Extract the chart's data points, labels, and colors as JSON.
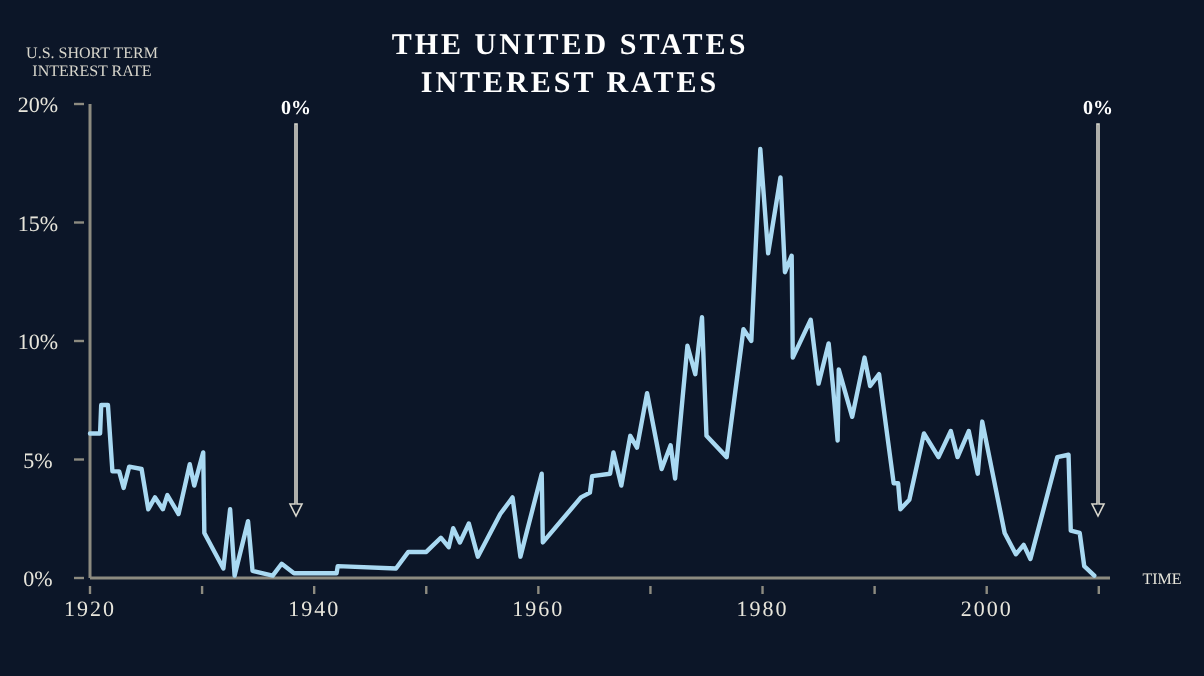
{
  "chart_data": {
    "type": "line",
    "title": "THE UNITED STATES\nINTEREST RATES",
    "ylabel": "U.S. SHORT TERM\nINTEREST RATE",
    "xlabel": "TIME",
    "x": [
      1920,
      1920.9,
      1921,
      1921.6,
      1922,
      1922.6,
      1923,
      1923.5,
      1924.6,
      1925.2,
      1925.8,
      1926.5,
      1926.9,
      1927.9,
      1928.9,
      1929.3,
      1930.1,
      1930.2,
      1931.9,
      1932.5,
      1932.9,
      1934.1,
      1934.5,
      1936.3,
      1937.1,
      1938.2,
      1942,
      1942.1,
      1947.3,
      1948.4,
      1950,
      1951.3,
      1952,
      1952.4,
      1953,
      1953.8,
      1954.6,
      1956.6,
      1957.7,
      1958.4,
      1960.3,
      1960.4,
      1963.8,
      1964.6,
      1964.8,
      1966.4,
      1966.7,
      1967.4,
      1968.2,
      1968.8,
      1969.7,
      1971,
      1971.8,
      1972.2,
      1973.3,
      1974,
      1974.6,
      1975,
      1976.8,
      1978.3,
      1979,
      1979.8,
      1980.5,
      1981.6,
      1982,
      1982.6,
      1982.7,
      1984.3,
      1985,
      1985.9,
      1986.3,
      1986.7,
      1986.8,
      1988,
      1989.1,
      1989.6,
      1990.4,
      1991.7,
      1992.1,
      1992.3,
      1993.1,
      1994.4,
      1995.7,
      1996.8,
      1997.4,
      1998.4,
      1999.2,
      1999.6,
      2001.6,
      2002.6,
      2003.3,
      2003.9,
      2006.3,
      2007.3,
      2007.5,
      2008.3,
      2008.7,
      2009.6
    ],
    "series": [
      {
        "color": "#a9d9f2",
        "values": [
          6.1,
          6.1,
          7.3,
          7.3,
          4.5,
          4.5,
          3.8,
          4.7,
          4.6,
          2.9,
          3.4,
          2.9,
          3.5,
          2.7,
          4.8,
          3.9,
          5.3,
          1.9,
          0.4,
          2.9,
          0.1,
          2.4,
          0.3,
          0.1,
          0.6,
          0.2,
          0.2,
          0.5,
          0.4,
          1.1,
          1.1,
          1.7,
          1.3,
          2.1,
          1.5,
          2.3,
          0.9,
          2.7,
          3.4,
          0.9,
          4.4,
          1.5,
          3.4,
          3.6,
          4.3,
          4.4,
          5.3,
          3.9,
          6.0,
          5.5,
          7.8,
          4.6,
          5.6,
          4.2,
          9.8,
          8.6,
          11.0,
          6.0,
          5.1,
          10.5,
          10.0,
          18.1,
          13.7,
          16.9,
          12.9,
          13.6,
          9.3,
          10.9,
          8.2,
          9.9,
          8.0,
          5.8,
          8.8,
          6.8,
          9.3,
          8.1,
          8.6,
          4.0,
          4.0,
          2.9,
          3.3,
          6.1,
          5.1,
          6.2,
          5.1,
          6.2,
          4.4,
          6.6,
          1.9,
          1.0,
          1.4,
          0.8,
          5.1,
          5.2,
          2.0,
          1.9,
          0.5,
          0.1
        ]
      }
    ],
    "xlim": [
      1920,
      2011
    ],
    "xticks": [
      1920,
      {
        "value": 1930,
        "label": null
      },
      1940,
      {
        "value": 1950,
        "label": null
      },
      1960,
      {
        "value": 1970,
        "label": null
      },
      1980,
      {
        "value": 1990,
        "label": null
      },
      2000,
      {
        "value": 2010,
        "label": null
      }
    ],
    "ylim": [
      0,
      20
    ],
    "yticks": [
      {
        "value": 0,
        "label": "0%"
      },
      {
        "value": 5,
        "label": "5%"
      },
      {
        "value": 10,
        "label": "10%"
      },
      {
        "value": 15,
        "label": "15%"
      },
      {
        "value": 20,
        "label": "20%"
      }
    ],
    "annotations": [
      "0%",
      "0%"
    ],
    "grid": false,
    "marker": "none",
    "line_style": "solid"
  }
}
